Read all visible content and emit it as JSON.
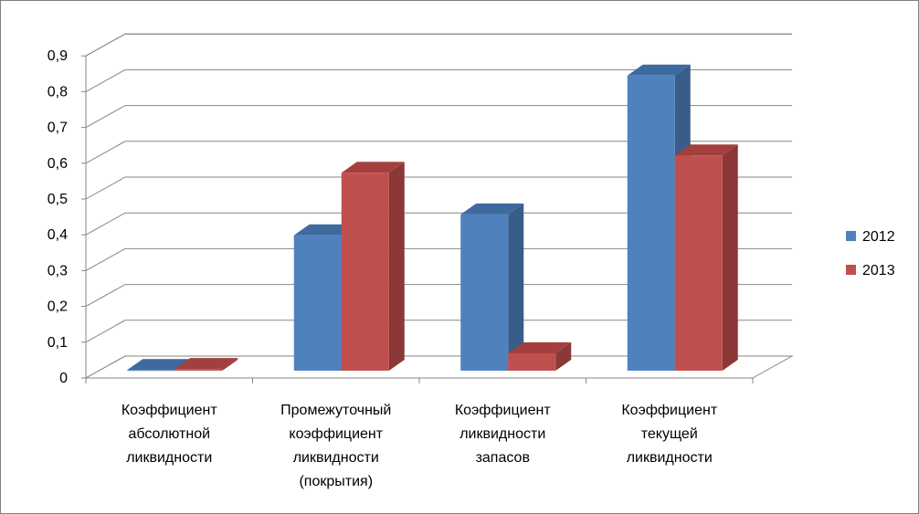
{
  "chart_data": {
    "type": "bar",
    "title": "",
    "xlabel": "",
    "ylabel": "",
    "ylim": [
      0,
      0.9
    ],
    "grid": true,
    "legend_position": "right",
    "y_ticks": [
      "0",
      "0,1",
      "0,2",
      "0,3",
      "0,4",
      "0,5",
      "0,6",
      "0,7",
      "0,8",
      "0,9"
    ],
    "categories": [
      [
        "Коэффициент",
        "абсолютной",
        "ликвидности"
      ],
      [
        "Промежуточный",
        "коэффициент",
        "ликвидности",
        "(покрытия)"
      ],
      [
        "Коэффициент",
        "ликвидности",
        "запасов"
      ],
      [
        "Коэффициент",
        "текущей",
        "ликвидности"
      ]
    ],
    "series": [
      {
        "name": "2012",
        "values": [
          0.002,
          0.39,
          0.45,
          0.85
        ],
        "color": "#4F81BD",
        "side_color": "#385D8A",
        "top_color": "#3F6A9E"
      },
      {
        "name": "2013",
        "values": [
          0.005,
          0.57,
          0.05,
          0.62
        ],
        "color": "#C0504D",
        "side_color": "#8C3836",
        "top_color": "#A3403D"
      }
    ]
  }
}
